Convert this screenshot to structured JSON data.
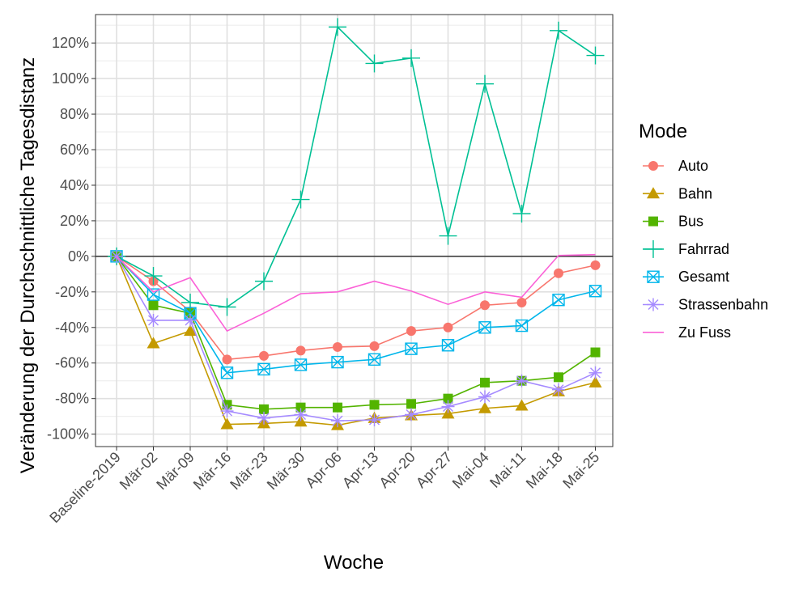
{
  "chart_data": {
    "type": "line",
    "title": "",
    "xlabel": "Woche",
    "ylabel": "Veränderung der Durchschnittliche Tagesdistanz",
    "categories": [
      "Baseline-2019",
      "Mär-02",
      "Mär-09",
      "Mär-16",
      "Mär-23",
      "Mär-30",
      "Apr-06",
      "Apr-13",
      "Apr-20",
      "Apr-27",
      "Mai-04",
      "Mai-11",
      "Mai-18",
      "Mai-25"
    ],
    "ylim": [
      -107,
      136
    ],
    "yticks": [
      -100,
      -80,
      -60,
      -40,
      -20,
      0,
      20,
      40,
      60,
      80,
      100,
      120
    ],
    "ytick_labels": [
      "-100%",
      "-80%",
      "-60%",
      "-40%",
      "-20%",
      "0%",
      "20%",
      "40%",
      "60%",
      "80%",
      "100%",
      "120%"
    ],
    "grid": true,
    "hline": 0,
    "legend": {
      "title": "Mode",
      "position": "right"
    },
    "series": [
      {
        "name": "Auto",
        "color": "#F8766D",
        "marker": "circle",
        "values": [
          0,
          -14,
          -31,
          -58,
          -56,
          -53,
          -51,
          -50.5,
          -42,
          -40,
          -27.5,
          -26,
          -9.5,
          -5
        ]
      },
      {
        "name": "Bahn",
        "color": "#C49A00",
        "marker": "triangle",
        "values": [
          0,
          -49,
          -42,
          -94.5,
          -94,
          -93,
          -95,
          -91,
          -89.5,
          -88.5,
          -85.5,
          -84,
          -76,
          -71
        ]
      },
      {
        "name": "Bus",
        "color": "#53B400",
        "marker": "square",
        "values": [
          0,
          -27.5,
          -32,
          -83.5,
          -86,
          -85,
          -85,
          -83.5,
          -83,
          -80,
          -71,
          -70,
          -68,
          -54
        ]
      },
      {
        "name": "Fahrrad",
        "color": "#00C094",
        "marker": "plus",
        "values": [
          0,
          -11,
          -26,
          -28.5,
          -14,
          32,
          129,
          108.5,
          111.5,
          11.5,
          97,
          24,
          127,
          113
        ]
      },
      {
        "name": "Gesamt",
        "color": "#00B6EB",
        "marker": "square-x",
        "values": [
          0,
          -21.5,
          -32,
          -65.5,
          -63.5,
          -61,
          -59.5,
          -58,
          -52,
          -50,
          -40,
          -39,
          -24.5,
          -19.5
        ]
      },
      {
        "name": "Strassenbahn",
        "color": "#A58AFF",
        "marker": "star",
        "values": [
          0,
          -36,
          -36,
          -87,
          -91,
          -89,
          -92.5,
          -92,
          -89,
          -84.5,
          -79,
          -70,
          -75,
          -65.5
        ]
      },
      {
        "name": "Zu Fuss",
        "color": "#FB61D7",
        "marker": "none",
        "values": [
          0,
          -20,
          -12,
          -42,
          -32,
          -21,
          -20,
          -14,
          -19.5,
          -27,
          -20,
          -23,
          0.5,
          1
        ]
      }
    ]
  }
}
